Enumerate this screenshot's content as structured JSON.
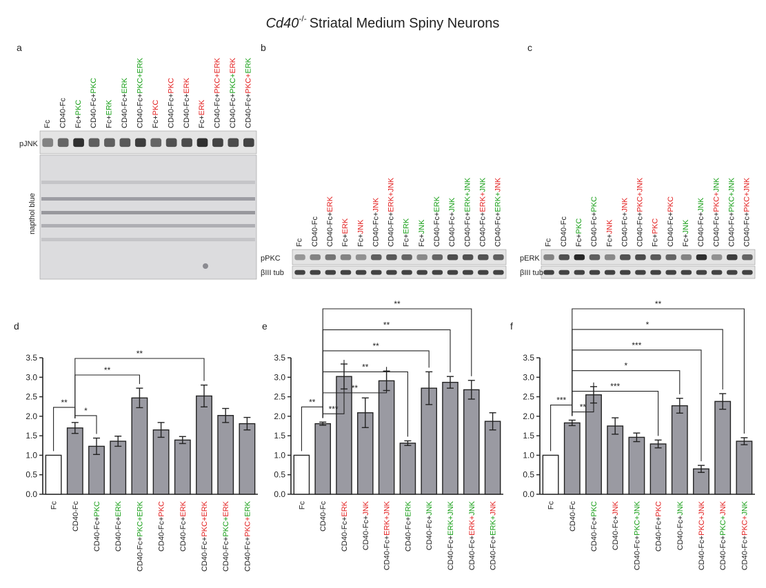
{
  "title": {
    "italic": "Cd40",
    "sup": "-/-",
    "rest": "Striatal Medium Spiny Neurons"
  },
  "colors": {
    "green": "#1aa01a",
    "red": "#e32222",
    "black": "#222222",
    "bar": "#9a9aa2",
    "control": "#ffffff"
  },
  "panels": {
    "a": {
      "label": "a",
      "band": "pJNK",
      "stain": "napthol blue",
      "lanes": [
        [
          [
            "Fc",
            "k"
          ]
        ],
        [
          [
            "CD40-Fc",
            "k"
          ]
        ],
        [
          [
            "Fc+",
            "k"
          ],
          [
            "PKC",
            "g"
          ]
        ],
        [
          [
            "CD40-Fc+",
            "k"
          ],
          [
            "PKC",
            "g"
          ]
        ],
        [
          [
            "Fc+",
            "k"
          ],
          [
            "ERK",
            "g"
          ]
        ],
        [
          [
            "CD40-Fc+",
            "k"
          ],
          [
            "ERK",
            "g"
          ]
        ],
        [
          [
            "CD40-Fc+",
            "k"
          ],
          [
            "PKC+ERK",
            "g"
          ]
        ],
        [
          [
            "Fc+",
            "k"
          ],
          [
            "PKC",
            "r"
          ]
        ],
        [
          [
            "CD40-Fc+",
            "k"
          ],
          [
            "PKC",
            "r"
          ]
        ],
        [
          [
            "CD40-Fc+",
            "k"
          ],
          [
            "ERK",
            "r"
          ]
        ],
        [
          [
            "Fc+",
            "k"
          ],
          [
            "ERK",
            "r"
          ]
        ],
        [
          [
            "CD40-Fc+",
            "k"
          ],
          [
            "PKC+ERK",
            "r"
          ]
        ],
        [
          [
            "CD40-Fc+",
            "k"
          ],
          [
            "PKC+",
            "g"
          ],
          [
            "ERK",
            "r"
          ]
        ],
        [
          [
            "CD40-Fc+",
            "k"
          ],
          [
            "PKC+",
            "r"
          ],
          [
            "ERK",
            "g"
          ]
        ]
      ]
    },
    "b": {
      "label": "b",
      "bands": [
        "pPKC",
        "βIII tub"
      ],
      "lanes": [
        [
          [
            "Fc",
            "k"
          ]
        ],
        [
          [
            "CD40-Fc",
            "k"
          ]
        ],
        [
          [
            "CD40-Fc+",
            "k"
          ],
          [
            "ERK",
            "r"
          ]
        ],
        [
          [
            "Fc+",
            "k"
          ],
          [
            "ERK",
            "r"
          ]
        ],
        [
          [
            "Fc+",
            "k"
          ],
          [
            "JNK",
            "r"
          ]
        ],
        [
          [
            "CD40-Fc+",
            "k"
          ],
          [
            "JNK",
            "r"
          ]
        ],
        [
          [
            "CD40-Fc+",
            "k"
          ],
          [
            "ERK+JNK",
            "r"
          ]
        ],
        [
          [
            "Fc+",
            "k"
          ],
          [
            "ERK",
            "g"
          ]
        ],
        [
          [
            "Fc+",
            "k"
          ],
          [
            "JNK",
            "g"
          ]
        ],
        [
          [
            "CD40-Fc+",
            "k"
          ],
          [
            "ERK",
            "g"
          ]
        ],
        [
          [
            "CD40-Fc+",
            "k"
          ],
          [
            "JNK",
            "g"
          ]
        ],
        [
          [
            "CD40-Fc+",
            "k"
          ],
          [
            "ERK+JNK",
            "g"
          ]
        ],
        [
          [
            "CD40-Fc+",
            "k"
          ],
          [
            "ERK+",
            "r"
          ],
          [
            "JNK",
            "g"
          ]
        ],
        [
          [
            "CD40-Fc+",
            "k"
          ],
          [
            "ERK+",
            "g"
          ],
          [
            "JNK",
            "r"
          ]
        ]
      ]
    },
    "c": {
      "label": "c",
      "bands": [
        "pERK",
        "βIII tub"
      ],
      "lanes": [
        [
          [
            "Fc",
            "k"
          ]
        ],
        [
          [
            "CD40-Fc",
            "k"
          ]
        ],
        [
          [
            "Fc+",
            "k"
          ],
          [
            "PKC",
            "g"
          ]
        ],
        [
          [
            "CD40-Fc+",
            "k"
          ],
          [
            "PKC",
            "g"
          ]
        ],
        [
          [
            "Fc+",
            "k"
          ],
          [
            "JNK",
            "r"
          ]
        ],
        [
          [
            "CD40-Fc+",
            "k"
          ],
          [
            "JNK",
            "r"
          ]
        ],
        [
          [
            "CD40-Fc+",
            "k"
          ],
          [
            "PKC+JNK",
            "r"
          ]
        ],
        [
          [
            "Fc+",
            "k"
          ],
          [
            "PKC",
            "r"
          ]
        ],
        [
          [
            "CD40-Fc+",
            "k"
          ],
          [
            "PKC",
            "r"
          ]
        ],
        [
          [
            "Fc+",
            "k"
          ],
          [
            "JNK",
            "g"
          ]
        ],
        [
          [
            "CD40-Fc+",
            "k"
          ],
          [
            "JNK",
            "g"
          ]
        ],
        [
          [
            "CD40-Fc+",
            "k"
          ],
          [
            "PKC+",
            "r"
          ],
          [
            "JNK",
            "g"
          ]
        ],
        [
          [
            "CD40-Fc+",
            "k"
          ],
          [
            "PKC+JNK",
            "g"
          ]
        ],
        [
          [
            "CD40-Fc+",
            "k"
          ],
          [
            "PKC+JNK",
            "r"
          ]
        ]
      ]
    }
  },
  "chart_data": [
    {
      "panel": "d",
      "type": "bar",
      "ylim": [
        0,
        3.5
      ],
      "yticks": [
        "0.0",
        "0.5",
        "1.0",
        "1.5",
        "2.0",
        "2.5",
        "3.0",
        "3.5"
      ],
      "categories": [
        [
          [
            "Fc",
            "k"
          ]
        ],
        [
          [
            "CD40-Fc",
            "k"
          ]
        ],
        [
          [
            "CD40-Fc+",
            "k"
          ],
          [
            "PKC",
            "g"
          ]
        ],
        [
          [
            "CD40-Fc+",
            "k"
          ],
          [
            "ERK",
            "g"
          ]
        ],
        [
          [
            "CD40-Fc+",
            "k"
          ],
          [
            "PKC+ERK",
            "g"
          ]
        ],
        [
          [
            "CD40-Fc+",
            "k"
          ],
          [
            "PKC",
            "r"
          ]
        ],
        [
          [
            "CD40-Fc+",
            "k"
          ],
          [
            "ERK",
            "r"
          ]
        ],
        [
          [
            "CD40-Fc+",
            "k"
          ],
          [
            "PKC+ERK",
            "r"
          ]
        ],
        [
          [
            "CD40-Fc+",
            "k"
          ],
          [
            "PKC+",
            "g"
          ],
          [
            "ERK",
            "r"
          ]
        ],
        [
          [
            "CD40-Fc+",
            "k"
          ],
          [
            "PKC+",
            "r"
          ],
          [
            "ERK",
            "g"
          ]
        ]
      ],
      "values": [
        1.0,
        1.7,
        1.23,
        1.36,
        2.47,
        1.65,
        1.39,
        2.52,
        2.02,
        1.81
      ],
      "errors": [
        0,
        0.14,
        0.21,
        0.13,
        0.25,
        0.19,
        0.09,
        0.28,
        0.18,
        0.16
      ],
      "brackets": [
        [
          0,
          1,
          "**"
        ],
        [
          1,
          2,
          "*"
        ],
        [
          1,
          4,
          "**"
        ],
        [
          1,
          7,
          "**"
        ]
      ]
    },
    {
      "panel": "e",
      "type": "bar",
      "ylim": [
        0,
        3.5
      ],
      "yticks": [
        "0.0",
        "0.5",
        "1.0",
        "1.5",
        "2.0",
        "2.5",
        "3.0",
        "3.5"
      ],
      "categories": [
        [
          [
            "Fc",
            "k"
          ]
        ],
        [
          [
            "CD40-Fc",
            "k"
          ]
        ],
        [
          [
            "CD40-Fc+",
            "k"
          ],
          [
            "ERK",
            "r"
          ]
        ],
        [
          [
            "CD40-Fc+",
            "k"
          ],
          [
            "JNK",
            "r"
          ]
        ],
        [
          [
            "CD40-Fc+",
            "k"
          ],
          [
            "ERK+JNK",
            "r"
          ]
        ],
        [
          [
            "CD40-Fc+",
            "k"
          ],
          [
            "ERK",
            "g"
          ]
        ],
        [
          [
            "CD40-Fc+",
            "k"
          ],
          [
            "JNK",
            "g"
          ]
        ],
        [
          [
            "CD40-Fc+",
            "k"
          ],
          [
            "ERK+JNK",
            "g"
          ]
        ],
        [
          [
            "CD40-Fc+",
            "k"
          ],
          [
            "ERK+",
            "r"
          ],
          [
            "JNK",
            "g"
          ]
        ],
        [
          [
            "CD40-Fc+",
            "k"
          ],
          [
            "ERK+",
            "g"
          ],
          [
            "JNK",
            "r"
          ]
        ]
      ],
      "values": [
        1.0,
        1.81,
        3.02,
        2.09,
        2.91,
        1.31,
        2.72,
        2.87,
        2.68,
        1.87
      ],
      "errors": [
        0,
        0.04,
        0.32,
        0.38,
        0.25,
        0.06,
        0.42,
        0.15,
        0.24,
        0.22
      ],
      "brackets": [
        [
          0,
          1,
          "**"
        ],
        [
          1,
          2,
          "***"
        ],
        [
          1,
          4,
          "**"
        ],
        [
          1,
          5,
          "**"
        ],
        [
          1,
          6,
          "**"
        ],
        [
          1,
          7,
          "**"
        ],
        [
          1,
          8,
          "**"
        ]
      ]
    },
    {
      "panel": "f",
      "type": "bar",
      "ylim": [
        0,
        3.5
      ],
      "yticks": [
        "0.0",
        "0.5",
        "1.0",
        "1.5",
        "2.0",
        "2.5",
        "3.0",
        "3.5"
      ],
      "categories": [
        [
          [
            "Fc",
            "k"
          ]
        ],
        [
          [
            "CD40-Fc",
            "k"
          ]
        ],
        [
          [
            "CD40-Fc+",
            "k"
          ],
          [
            "PKC",
            "g"
          ]
        ],
        [
          [
            "CD40-Fc+",
            "k"
          ],
          [
            "JNK",
            "r"
          ]
        ],
        [
          [
            "CD40-Fc+",
            "k"
          ],
          [
            "PKC+JNK",
            "g"
          ]
        ],
        [
          [
            "CD40-Fc+",
            "k"
          ],
          [
            "PKC",
            "r"
          ]
        ],
        [
          [
            "CD40-Fc+",
            "k"
          ],
          [
            "JNK",
            "g"
          ]
        ],
        [
          [
            "CD40-Fc+",
            "k"
          ],
          [
            "PKC+JNK",
            "r"
          ]
        ],
        [
          [
            "CD40-Fc+",
            "k"
          ],
          [
            "PKC+",
            "g"
          ],
          [
            "JNK",
            "r"
          ]
        ],
        [
          [
            "CD40-Fc+",
            "k"
          ],
          [
            "PKC+",
            "r"
          ],
          [
            "JNK",
            "g"
          ]
        ]
      ],
      "values": [
        1.0,
        1.83,
        2.55,
        1.75,
        1.46,
        1.29,
        2.27,
        0.65,
        2.38,
        1.36
      ],
      "errors": [
        0,
        0.07,
        0.21,
        0.21,
        0.11,
        0.1,
        0.19,
        0.09,
        0.2,
        0.09
      ],
      "brackets": [
        [
          0,
          1,
          "***"
        ],
        [
          1,
          2,
          "**"
        ],
        [
          1,
          5,
          "***"
        ],
        [
          1,
          6,
          "*"
        ],
        [
          1,
          7,
          "***"
        ],
        [
          1,
          8,
          "*"
        ],
        [
          1,
          9,
          "**"
        ]
      ]
    }
  ]
}
